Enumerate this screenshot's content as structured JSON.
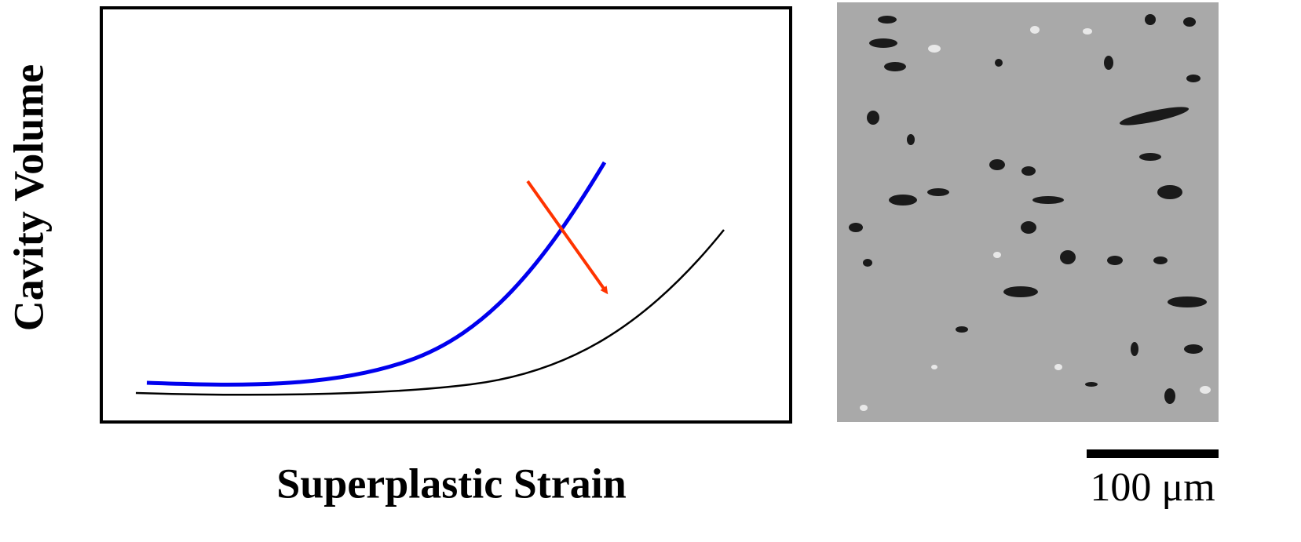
{
  "axes": {
    "y_label": "Cavity Volume",
    "x_label": "Superplastic Strain"
  },
  "micrograph": {
    "scale_bar_label": "100 μm"
  }
}
